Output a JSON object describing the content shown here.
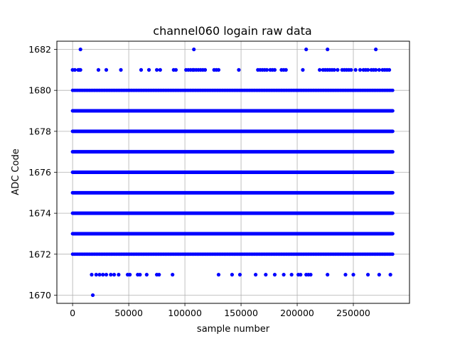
{
  "chart_data": {
    "type": "scatter",
    "title": "channel060 logain raw data",
    "xlabel": "sample number",
    "ylabel": "ADC Code",
    "xlim": [
      -14000,
      300000
    ],
    "ylim": [
      1669.6,
      1682.4
    ],
    "x_ticks": [
      0,
      50000,
      100000,
      150000,
      200000,
      250000
    ],
    "y_ticks": [
      1670,
      1672,
      1674,
      1676,
      1678,
      1680,
      1682
    ],
    "x_tick_labels": [
      "0",
      "50000",
      "100000",
      "150000",
      "200000",
      "250000"
    ],
    "y_tick_labels": [
      "1670",
      "1672",
      "1674",
      "1676",
      "1678",
      "1680",
      "1682"
    ],
    "grid": true,
    "marker_color": "#0000ff",
    "continuous_bands": [
      {
        "y": 1673,
        "x_range": [
          0,
          285000
        ]
      },
      {
        "y": 1674,
        "x_range": [
          0,
          285000
        ]
      },
      {
        "y": 1675,
        "x_range": [
          0,
          285000
        ]
      },
      {
        "y": 1676,
        "x_range": [
          0,
          285000
        ]
      },
      {
        "y": 1677,
        "x_range": [
          0,
          285000
        ]
      },
      {
        "y": 1678,
        "x_range": [
          0,
          285000
        ]
      },
      {
        "y": 1679,
        "x_range": [
          0,
          285000
        ]
      }
    ],
    "dense_levels": [
      {
        "y": 1672,
        "x_range": [
          0,
          285000
        ]
      },
      {
        "y": 1680,
        "x_range": [
          0,
          285000
        ]
      }
    ],
    "sparse_points": {
      "1682": [
        7000,
        108000,
        208000,
        227000,
        270000
      ],
      "1681": [
        0,
        2000,
        5000,
        6000,
        7000,
        23000,
        30000,
        43000,
        61000,
        68000,
        75000,
        78000,
        90000,
        92000,
        101000,
        103000,
        105000,
        107000,
        108000,
        110000,
        112000,
        114000,
        116000,
        118000,
        126000,
        128000,
        130000,
        148000,
        165000,
        167000,
        169000,
        171000,
        173000,
        176000,
        178000,
        180000,
        186000,
        188000,
        190000,
        205000,
        220000,
        223000,
        225000,
        227000,
        229000,
        231000,
        233000,
        236000,
        240000,
        242000,
        244000,
        246000,
        248000,
        252000,
        256000,
        259000,
        261000,
        263000,
        266000,
        268000,
        270000,
        273000,
        276000,
        278000,
        280000,
        282000
      ],
      "1671": [
        17000,
        21000,
        24000,
        27000,
        30000,
        34000,
        37000,
        41000,
        49000,
        51000,
        58000,
        60000,
        66000,
        75000,
        77000,
        89000,
        130000,
        142000,
        149000,
        163000,
        172000,
        180000,
        188000,
        195000,
        201000,
        203000,
        208000,
        210000,
        212000,
        227000,
        243000,
        250000,
        263000,
        273000,
        283000
      ],
      "1670": [
        18000
      ]
    }
  }
}
